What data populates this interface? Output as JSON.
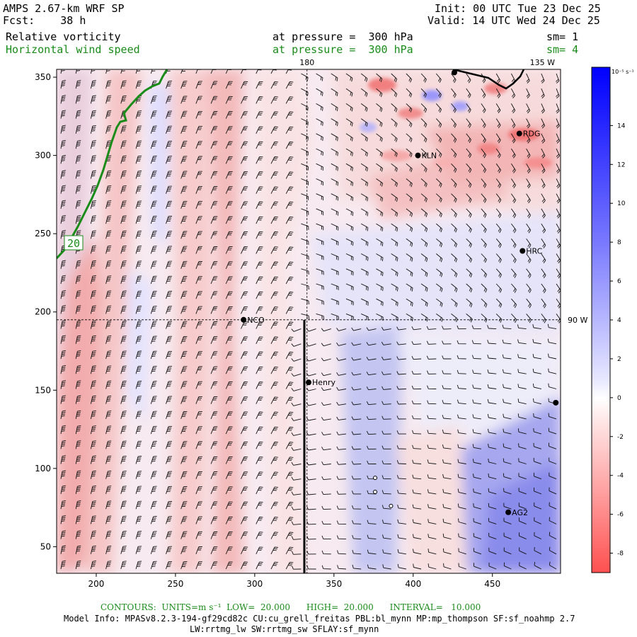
{
  "header": {
    "title": "AMPS 2.67-km WRF SP",
    "fcst": "Fcst:    38 h",
    "init": "Init: 00 UTC Tue 23 Dec 25",
    "valid": "Valid: 14 UTC Wed 24 Dec 25",
    "field1_name": "Relative vorticity",
    "field1_level": "at pressure =  300 hPa",
    "field1_smooth": "sm= 1",
    "field2_name": "Horizontal wind speed",
    "field2_level": "at pressure =  300 hPa",
    "field2_smooth": "sm= 4"
  },
  "chart_data": {
    "type": "heatmap",
    "title": "Relative vorticity",
    "xlim": [
      175,
      493
    ],
    "ylim": [
      33,
      355
    ],
    "x_ticks": [
      200,
      250,
      300,
      350,
      400,
      450
    ],
    "y_ticks": [
      50,
      100,
      150,
      200,
      250,
      300,
      350
    ],
    "reference_lines": {
      "vertical": {
        "x": 333,
        "label": "180"
      },
      "horizontal": {
        "y": 195,
        "label": "90 W"
      },
      "corner_label": "135 W"
    },
    "contour_label": "20",
    "colorbar": {
      "unit_label": "10⁻⁵ s⁻¹",
      "ticks": [
        14,
        12,
        10,
        8,
        6,
        4,
        2,
        0,
        -2,
        -4,
        -6,
        -8
      ],
      "range": [
        -9,
        17
      ]
    },
    "stations": [
      {
        "name": "NCO",
        "x": 293,
        "y": 195
      },
      {
        "name": "Henry",
        "x": 334,
        "y": 155
      },
      {
        "name": "KLN",
        "x": 403,
        "y": 300
      },
      {
        "name": "RDG",
        "x": 467,
        "y": 314
      },
      {
        "name": "HRC",
        "x": 469,
        "y": 239
      },
      {
        "name": "AG2",
        "x": 460,
        "y": 72
      },
      {
        "name": "",
        "x": 490,
        "y": 142
      },
      {
        "name": "",
        "x": 426,
        "y": 353
      }
    ],
    "open_markers": [
      {
        "x": 376,
        "y": 94
      },
      {
        "x": 376,
        "y": 85
      },
      {
        "x": 386,
        "y": 76
      }
    ]
  },
  "footer": {
    "contours": "CONTOURS:  UNITS=m s⁻¹  LOW=  20.000      HIGH=  20.000      INTERVAL=   10.000",
    "model_info": "Model Info: MPASv8.2.3-194-gf29cd82c CU:cu_grell_freitas PBL:bl_mynn MP:mp_thompson SF:sf_noahmp 2.7",
    "model_info2": "LW:rrtmg_lw SW:rrtmg_sw SFLAY:sf_mynn"
  },
  "colors": {
    "positive": "#0000ff",
    "negative": "#ff5a5a",
    "contour": "#1a8c1a"
  }
}
